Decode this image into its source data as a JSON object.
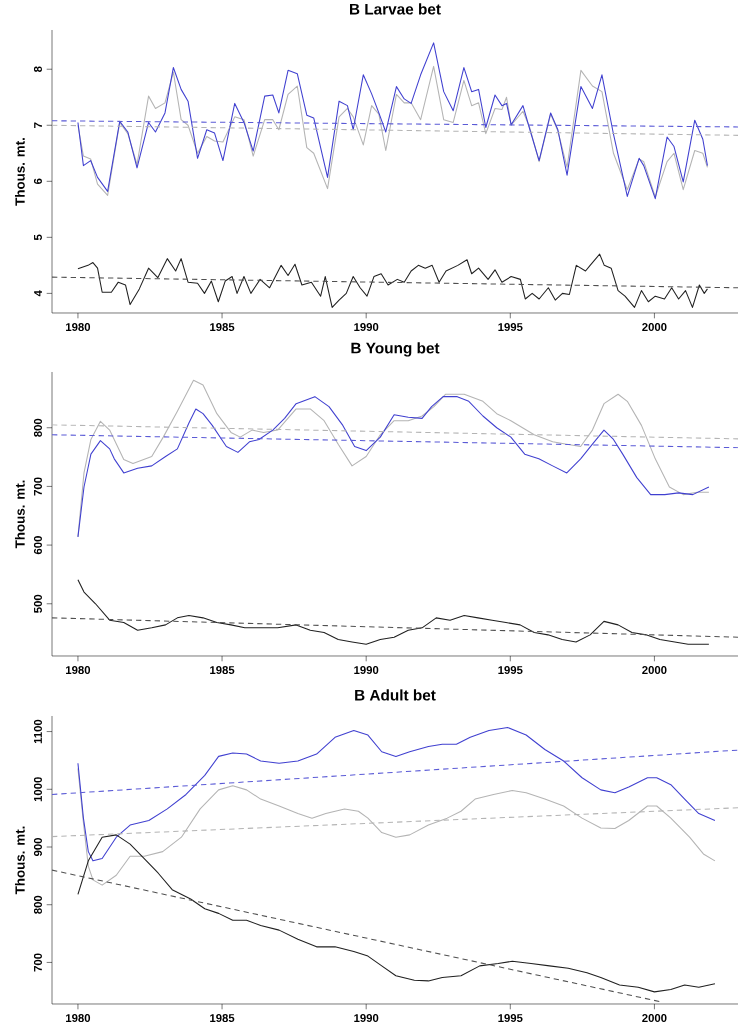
{
  "chart_data": [
    {
      "type": "line",
      "title": "B Larvae bet",
      "ylabel": "Thous. mt.",
      "xlim": [
        1979.1,
        2002.9
      ],
      "ylim": [
        3.65,
        8.7
      ],
      "xticks": [
        1980,
        1985,
        1990,
        1995,
        2000
      ],
      "yticks": [
        4,
        5,
        6,
        7,
        8
      ],
      "x": [
        1980,
        1980.19,
        1980.44,
        1980.68,
        1981.03,
        1981.45,
        1981.73,
        1982.05,
        1982.45,
        1982.69,
        1983.02,
        1983.31,
        1983.58,
        1983.82,
        1984.15,
        1984.47,
        1984.74,
        1985.03,
        1985.44,
        1985.76,
        1986.08,
        1986.48,
        1986.76,
        1986.97,
        1987.29,
        1987.61,
        1987.94,
        1988.18,
        1988.66,
        1989.06,
        1989.35,
        1989.55,
        1989.9,
        1990.19,
        1990.44,
        1990.68,
        1991.05,
        1991.32,
        1991.56,
        1991.89,
        1992.34,
        1992.69,
        1993.02,
        1993.39,
        1993.66,
        1993.9,
        1994.15,
        1994.47,
        1994.71,
        1994.87,
        1995.03,
        1995.44,
        1995.68,
        1996,
        1996.4,
        1996.65,
        1996.97,
        1997.45,
        1997.85,
        1998.18,
        1998.58,
        1999.06,
        1999.47,
        1999.63,
        2000.03,
        2000.44,
        2000.68,
        2001,
        2001.4,
        2001.68,
        2001.84
      ],
      "series": [
        {
          "color": "#b4b4b4",
          "values": [
            7.0,
            6.45,
            6.4,
            5.95,
            5.75,
            7.05,
            6.85,
            6.3,
            7.52,
            7.3,
            7.4,
            7.95,
            7.1,
            7.0,
            6.5,
            6.8,
            6.72,
            6.7,
            7.15,
            7.1,
            6.45,
            7.1,
            7.1,
            6.92,
            7.55,
            7.7,
            6.6,
            6.5,
            5.87,
            7.15,
            7.3,
            7.15,
            6.65,
            7.35,
            7.2,
            6.55,
            7.55,
            7.4,
            7.4,
            7.1,
            8.05,
            7.1,
            7.05,
            7.8,
            7.35,
            7.4,
            6.85,
            7.3,
            7.28,
            7.5,
            7.0,
            7.25,
            6.95,
            6.35,
            7.2,
            6.9,
            6.25,
            7.98,
            7.7,
            7.6,
            6.5,
            5.85,
            6.4,
            6.35,
            5.72,
            6.35,
            6.5,
            5.85,
            6.55,
            6.5,
            6.25
          ]
        },
        {
          "color": "#4040d0",
          "values": [
            7.05,
            6.28,
            6.37,
            6.07,
            5.82,
            7.07,
            6.88,
            6.24,
            7.05,
            6.88,
            7.22,
            8.03,
            7.64,
            7.43,
            6.41,
            6.92,
            6.86,
            6.37,
            7.39,
            7.05,
            6.54,
            7.52,
            7.54,
            7.22,
            7.98,
            7.92,
            7.18,
            7.13,
            6.07,
            7.43,
            7.35,
            6.92,
            7.9,
            7.56,
            7.22,
            6.88,
            7.69,
            7.47,
            7.39,
            7.9,
            8.47,
            7.6,
            7.26,
            8.03,
            7.6,
            7.64,
            6.96,
            7.54,
            7.35,
            7.39,
            7.01,
            7.35,
            6.92,
            6.37,
            7.22,
            6.92,
            6.11,
            7.69,
            7.3,
            7.9,
            6.84,
            5.73,
            6.41,
            6.28,
            5.69,
            6.79,
            6.62,
            5.99,
            7.09,
            6.75,
            6.28
          ]
        },
        {
          "color": "#202020",
          "x": [
            1980,
            1980.35,
            1980.52,
            1980.68,
            1980.84,
            1981.16,
            1981.4,
            1981.65,
            1981.81,
            1982.13,
            1982.45,
            1982.77,
            1983.1,
            1983.39,
            1983.58,
            1983.82,
            1984.15,
            1984.39,
            1984.63,
            1984.87,
            1985.11,
            1985.35,
            1985.52,
            1985.76,
            1986,
            1986.32,
            1986.65,
            1987.05,
            1987.29,
            1987.53,
            1987.77,
            1988.1,
            1988.42,
            1988.58,
            1988.82,
            1989.06,
            1989.31,
            1989.55,
            1989.79,
            1990.03,
            1990.27,
            1990.52,
            1990.76,
            1991.08,
            1991.32,
            1991.56,
            1991.81,
            1992.05,
            1992.29,
            1992.53,
            1992.77,
            1993.18,
            1993.5,
            1993.66,
            1993.9,
            1994.23,
            1994.47,
            1994.71,
            1995.03,
            1995.35,
            1995.52,
            1995.76,
            1996,
            1996.32,
            1996.56,
            1996.81,
            1997.05,
            1997.29,
            1997.61,
            1997.77,
            1998.1,
            1998.26,
            1998.5,
            1998.74,
            1998.98,
            1999.31,
            1999.55,
            1999.79,
            2000.03,
            2000.35,
            2000.6,
            2000.84,
            2001.08,
            2001.32,
            2001.56,
            2001.73,
            2001.84
          ],
          "values": [
            4.44,
            4.5,
            4.55,
            4.45,
            4.02,
            4.02,
            4.2,
            4.15,
            3.8,
            4.08,
            4.45,
            4.28,
            4.62,
            4.4,
            4.62,
            4.2,
            4.18,
            4.0,
            4.22,
            3.85,
            4.22,
            4.3,
            4.0,
            4.3,
            4.0,
            4.25,
            4.1,
            4.5,
            4.32,
            4.52,
            4.15,
            4.2,
            3.95,
            4.3,
            3.75,
            3.88,
            4.0,
            4.3,
            4.1,
            3.95,
            4.3,
            4.35,
            4.15,
            4.25,
            4.2,
            4.4,
            4.5,
            4.45,
            4.5,
            4.2,
            4.4,
            4.5,
            4.6,
            4.35,
            4.45,
            4.25,
            4.42,
            4.2,
            4.3,
            4.25,
            3.9,
            4.0,
            3.9,
            4.1,
            3.88,
            4.0,
            3.98,
            4.5,
            4.4,
            4.5,
            4.7,
            4.5,
            4.45,
            4.05,
            3.95,
            3.75,
            4.05,
            3.85,
            3.95,
            3.9,
            4.1,
            3.9,
            4.05,
            3.75,
            4.15,
            4.0,
            4.08
          ]
        },
        {
          "color": "#b4b4b4",
          "line_style": "dashed",
          "x": [
            1979.1,
            2002.9
          ],
          "values": [
            7.0,
            6.82
          ]
        },
        {
          "color": "#5a5ad6",
          "line_style": "dashed",
          "x": [
            1979.1,
            2002.9
          ],
          "values": [
            7.08,
            6.97
          ]
        },
        {
          "color": "#505050",
          "line_style": "dashed",
          "x": [
            1979.1,
            2002.9
          ],
          "values": [
            4.29,
            4.1
          ]
        }
      ]
    },
    {
      "type": "line",
      "title": "B Young bet",
      "ylabel": "Thous. mt.",
      "xlim": [
        1979.1,
        2002.9
      ],
      "ylim": [
        411,
        895
      ],
      "xticks": [
        1980,
        1985,
        1990,
        1995,
        2000
      ],
      "yticks": [
        500,
        600,
        700,
        800
      ],
      "series": [
        {
          "color": "#b4b4b4",
          "x": [
            1980,
            1980.21,
            1980.45,
            1980.78,
            1981.1,
            1981.59,
            1981.91,
            1982.56,
            1982.96,
            1983.45,
            1984.01,
            1984.34,
            1984.82,
            1985.31,
            1985.63,
            1986.04,
            1986.44,
            1986.93,
            1987.57,
            1988.06,
            1988.54,
            1989.03,
            1989.51,
            1990,
            1990.49,
            1990.97,
            1991.46,
            1991.94,
            1992.35,
            1992.75,
            1993.4,
            1994.05,
            1994.53,
            1995.02,
            1995.83,
            1996.47,
            1996.96,
            1997.44,
            1997.85,
            1998.25,
            1998.74,
            1999.06,
            1999.55,
            2000.03,
            2000.52,
            2001,
            2001.49,
            2001.89
          ],
          "values": [
            614,
            723,
            780,
            811,
            796,
            746,
            739,
            751,
            784,
            828,
            881,
            873,
            824,
            792,
            784,
            796,
            792,
            796,
            832,
            832,
            812,
            772,
            735,
            751,
            788,
            812,
            812,
            820,
            836,
            857,
            857,
            845,
            824,
            812,
            788,
            776,
            772,
            768,
            796,
            841,
            857,
            845,
            804,
            747,
            699,
            686,
            690,
            690
          ]
        },
        {
          "color": "#4040d0",
          "x": [
            1980,
            1980.21,
            1980.45,
            1980.78,
            1981.1,
            1981.26,
            1981.59,
            1982.07,
            1982.56,
            1983.04,
            1983.45,
            1983.85,
            1984.09,
            1984.34,
            1984.66,
            1985.15,
            1985.55,
            1985.95,
            1986.28,
            1986.76,
            1987.17,
            1987.57,
            1988.22,
            1988.71,
            1989.19,
            1989.6,
            1990,
            1990.49,
            1990.97,
            1991.46,
            1991.94,
            1992.27,
            1992.67,
            1993.16,
            1993.56,
            1994.05,
            1994.53,
            1995.02,
            1995.5,
            1995.99,
            1996.47,
            1996.96,
            1997.44,
            1997.85,
            1998.25,
            1998.58,
            1998.9,
            1999.39,
            1999.87,
            2000.36,
            2000.84,
            2001.33,
            2001.89
          ],
          "values": [
            614,
            699,
            755,
            778,
            764,
            747,
            723,
            731,
            735,
            751,
            764,
            808,
            832,
            824,
            804,
            768,
            758,
            776,
            780,
            796,
            816,
            841,
            853,
            836,
            804,
            768,
            761,
            784,
            822,
            818,
            816,
            836,
            853,
            853,
            845,
            820,
            800,
            784,
            755,
            747,
            735,
            723,
            747,
            772,
            796,
            780,
            755,
            715,
            686,
            686,
            689,
            686,
            699
          ]
        },
        {
          "color": "#202020",
          "x": [
            1980,
            1980.21,
            1980.61,
            1981.1,
            1981.59,
            1982.07,
            1982.56,
            1983.04,
            1983.45,
            1983.85,
            1984.34,
            1984.82,
            1985.31,
            1985.79,
            1986.28,
            1986.93,
            1987.57,
            1988.06,
            1988.54,
            1989.03,
            1989.51,
            1990,
            1990.49,
            1990.97,
            1991.46,
            1991.94,
            1992.43,
            1992.91,
            1993.4,
            1993.88,
            1994.37,
            1994.85,
            1995.34,
            1995.83,
            1996.31,
            1996.8,
            1997.28,
            1997.77,
            1998.25,
            1998.74,
            1999.22,
            1999.71,
            2000.19,
            2000.68,
            2001.17,
            2001.89
          ],
          "values": [
            541,
            520,
            500,
            472,
            468,
            455,
            459,
            464,
            476,
            480,
            476,
            468,
            464,
            459,
            459,
            459,
            464,
            455,
            451,
            439,
            435,
            431,
            439,
            443,
            455,
            459,
            476,
            472,
            480,
            476,
            472,
            468,
            464,
            451,
            447,
            439,
            435,
            447,
            470,
            464,
            451,
            447,
            439,
            435,
            431,
            431
          ]
        },
        {
          "color": "#b4b4b4",
          "line_style": "dashed",
          "x": [
            1979.1,
            2002.9
          ],
          "values": [
            805,
            781
          ]
        },
        {
          "color": "#5a5ad6",
          "line_style": "dashed",
          "x": [
            1979.1,
            2002.9
          ],
          "values": [
            788,
            766
          ]
        },
        {
          "color": "#505050",
          "line_style": "dashed",
          "x": [
            1979.1,
            2002.9
          ],
          "values": [
            476,
            443
          ]
        }
      ]
    },
    {
      "type": "line",
      "title": "B Adult bet",
      "ylabel": "Thous. mt.",
      "xlim": [
        1979.1,
        2002.9
      ],
      "ylim": [
        628,
        1127
      ],
      "xticks": [
        1980,
        1985,
        1990,
        1995,
        2000
      ],
      "yticks": [
        700,
        800,
        900,
        1000,
        1100
      ],
      "series": [
        {
          "color": "#b4b4b4",
          "x": [
            1980,
            1980.19,
            1980.36,
            1980.52,
            1980.84,
            1981.33,
            1981.81,
            1982.3,
            1982.94,
            1983.59,
            1984.24,
            1984.88,
            1985.37,
            1985.85,
            1986.34,
            1986.98,
            1987.63,
            1988.12,
            1988.6,
            1989.25,
            1989.73,
            1990.06,
            1990.54,
            1991.03,
            1991.51,
            1992.16,
            1992.81,
            1993.29,
            1993.78,
            1994.42,
            1995.07,
            1995.55,
            1996.2,
            1996.85,
            1997.49,
            1998.14,
            1998.63,
            1999.11,
            1999.76,
            2000.08,
            2000.57,
            2001.22,
            2001.7,
            2002.1
          ],
          "values": [
            1036,
            942,
            867,
            843,
            834,
            851,
            884,
            884,
            892,
            917,
            966,
            999,
            1006,
            999,
            983,
            971,
            958,
            950,
            958,
            966,
            962,
            950,
            925,
            917,
            921,
            938,
            950,
            962,
            983,
            991,
            998,
            994,
            983,
            971,
            950,
            933,
            932,
            946,
            971,
            971,
            950,
            917,
            888,
            876
          ]
        },
        {
          "color": "#4040d0",
          "x": [
            1980,
            1980.19,
            1980.36,
            1980.52,
            1980.84,
            1981.33,
            1981.81,
            1982.46,
            1983.1,
            1983.75,
            1984.4,
            1984.88,
            1985.37,
            1985.85,
            1986.34,
            1986.98,
            1987.63,
            1988.28,
            1988.92,
            1989.57,
            1990.06,
            1990.54,
            1991.03,
            1991.51,
            1992.16,
            1992.64,
            1993.13,
            1993.61,
            1994.26,
            1994.91,
            1995.55,
            1996.2,
            1996.85,
            1997.49,
            1998.14,
            1998.63,
            1999.11,
            1999.76,
            2000.08,
            2000.57,
            2001.05,
            2001.54,
            2002.1
          ],
          "values": [
            1045,
            950,
            892,
            876,
            880,
            917,
            938,
            946,
            966,
            991,
            1024,
            1057,
            1063,
            1061,
            1049,
            1045,
            1049,
            1061,
            1090,
            1102,
            1094,
            1065,
            1057,
            1065,
            1074,
            1078,
            1078,
            1090,
            1102,
            1107,
            1094,
            1069,
            1049,
            1020,
            999,
            994,
            1004,
            1020,
            1020,
            1008,
            983,
            958,
            946
          ]
        },
        {
          "color": "#202020",
          "x": [
            1980,
            1980.36,
            1980.84,
            1981.33,
            1981.81,
            1982.3,
            1982.78,
            1983.27,
            1983.91,
            1984.4,
            1984.88,
            1985.37,
            1985.85,
            1986.34,
            1986.98,
            1987.63,
            1988.28,
            1988.92,
            1989.57,
            1990.06,
            1990.54,
            1991.03,
            1991.67,
            1992.16,
            1992.64,
            1993.29,
            1993.94,
            1994.58,
            1995.07,
            1995.72,
            1996.36,
            1997.01,
            1997.66,
            1998.14,
            1998.79,
            1999.44,
            2000,
            2000.57,
            2001.05,
            2001.54,
            2002.1
          ],
          "values": [
            818,
            876,
            917,
            921,
            905,
            880,
            855,
            826,
            810,
            793,
            785,
            773,
            773,
            764,
            756,
            740,
            727,
            727,
            719,
            711,
            694,
            677,
            669,
            668,
            674,
            677,
            694,
            698,
            702,
            698,
            694,
            690,
            682,
            674,
            661,
            657,
            649,
            653,
            661,
            657,
            663
          ]
        },
        {
          "color": "#b4b4b4",
          "line_style": "dashed",
          "x": [
            1979.1,
            2002.9
          ],
          "values": [
            918,
            968
          ]
        },
        {
          "color": "#5a5ad6",
          "line_style": "dashed",
          "x": [
            1979.1,
            2002.9
          ],
          "values": [
            991,
            1068
          ]
        },
        {
          "color": "#505050",
          "line_style": "dashed",
          "x": [
            1979.1,
            2000.2
          ],
          "values": [
            860,
            632
          ]
        }
      ]
    }
  ]
}
